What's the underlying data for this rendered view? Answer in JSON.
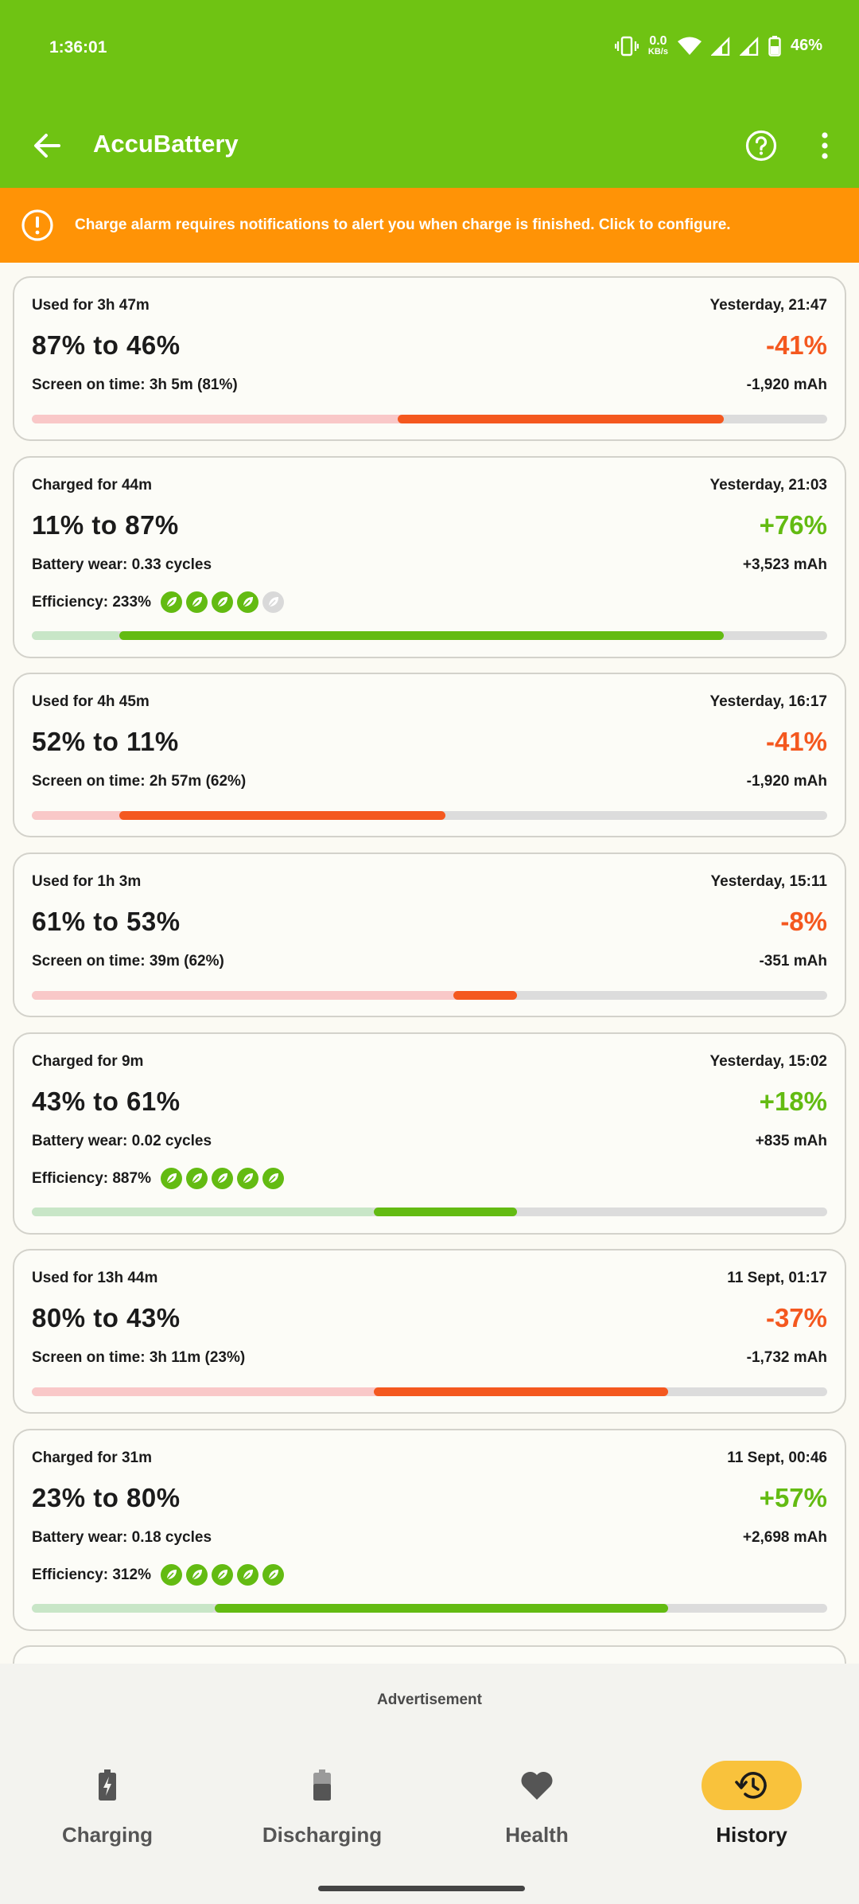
{
  "status_bar": {
    "time": "1:36:01",
    "net_speed": "0.0",
    "net_unit": "KB/s",
    "battery": "46%"
  },
  "app_bar": {
    "title": "AccuBattery"
  },
  "banner": {
    "text": "Charge alarm requires notifications to alert you when charge is finished. Click to configure."
  },
  "sessions": [
    {
      "type": "used",
      "label": "Used for 3h 47m",
      "date": "Yesterday, 21:47",
      "range": "87% to 46%",
      "percent": "-41%",
      "detail": "Screen on time: 3h 5m (81%)",
      "mah": "-1,920 mAh",
      "bar_prev_end": 0.87,
      "bar_start": 0.46,
      "bar_end": 0.87
    },
    {
      "type": "charged",
      "label": "Charged for 44m",
      "date": "Yesterday, 21:03",
      "range": "11% to 87%",
      "percent": "+76%",
      "detail": "Battery wear: 0.33 cycles",
      "mah": "+3,523 mAh",
      "efficiency": "Efficiency: 233%",
      "leaves_on": 4,
      "bar_prev_end": 0.11,
      "bar_start": 0.11,
      "bar_end": 0.87
    },
    {
      "type": "used",
      "label": "Used for 4h 45m",
      "date": "Yesterday, 16:17",
      "range": "52% to 11%",
      "percent": "-41%",
      "detail": "Screen on time: 2h 57m (62%)",
      "mah": "-1,920 mAh",
      "bar_prev_end": 0.52,
      "bar_start": 0.11,
      "bar_end": 0.52
    },
    {
      "type": "used",
      "label": "Used for 1h 3m",
      "date": "Yesterday, 15:11",
      "range": "61% to 53%",
      "percent": "-8%",
      "detail": "Screen on time: 39m (62%)",
      "mah": "-351 mAh",
      "bar_prev_end": 0.61,
      "bar_start": 0.53,
      "bar_end": 0.61
    },
    {
      "type": "charged",
      "label": "Charged for 9m",
      "date": "Yesterday, 15:02",
      "range": "43% to 61%",
      "percent": "+18%",
      "detail": "Battery wear: 0.02 cycles",
      "mah": "+835 mAh",
      "efficiency": "Efficiency: 887%",
      "leaves_on": 5,
      "bar_prev_end": 0.43,
      "bar_start": 0.43,
      "bar_end": 0.61
    },
    {
      "type": "used",
      "label": "Used for 13h 44m",
      "date": "11 Sept, 01:17",
      "range": "80% to 43%",
      "percent": "-37%",
      "detail": "Screen on time: 3h 11m (23%)",
      "mah": "-1,732 mAh",
      "bar_prev_end": 0.8,
      "bar_start": 0.43,
      "bar_end": 0.8
    },
    {
      "type": "charged",
      "label": "Charged for 31m",
      "date": "11 Sept, 00:46",
      "range": "23% to 80%",
      "percent": "+57%",
      "detail": "Battery wear: 0.18 cycles",
      "mah": "+2,698 mAh",
      "efficiency": "Efficiency: 312%",
      "leaves_on": 5,
      "bar_prev_end": 0.23,
      "bar_start": 0.23,
      "bar_end": 0.8
    }
  ],
  "ad": {
    "label": "Advertisement"
  },
  "bottom_nav": {
    "items": [
      {
        "label": "Charging",
        "icon": "battery-charging-icon"
      },
      {
        "label": "Discharging",
        "icon": "battery-discharging-icon"
      },
      {
        "label": "Health",
        "icon": "heart-icon"
      },
      {
        "label": "History",
        "icon": "history-icon"
      }
    ],
    "active": "History"
  },
  "colors": {
    "header_green": "#6fc313",
    "banner_orange": "#ff9306",
    "negative": "#f4581f",
    "positive": "#63bb12",
    "active_pill": "#f9c23c"
  }
}
